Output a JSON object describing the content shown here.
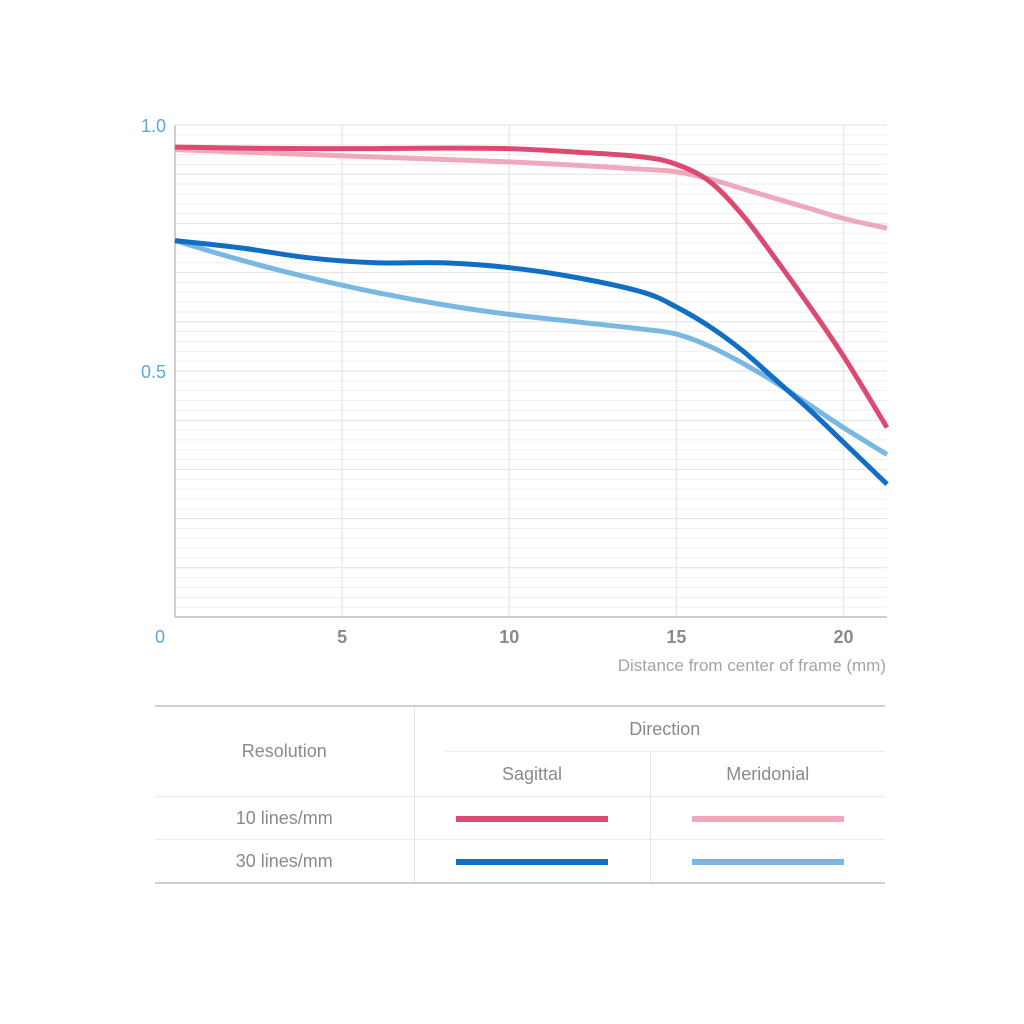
{
  "chart_data": {
    "type": "line",
    "xlabel": "Distance from center of frame (mm)",
    "ylabel": "",
    "xlim": [
      0,
      21.3
    ],
    "ylim": [
      0,
      1.0
    ],
    "x_ticks": [
      "0",
      "5",
      "10",
      "15",
      "20"
    ],
    "y_ticks": [
      "0.5",
      "1.0"
    ],
    "grid": true,
    "series": [
      {
        "resolution": "10 lines/mm",
        "direction": "Sagittal",
        "color": "#dc4a72",
        "x": [
          0,
          2,
          4,
          6,
          8,
          10,
          12,
          14,
          15,
          16,
          17,
          18,
          19,
          20,
          21.3
        ],
        "y": [
          0.955,
          0.953,
          0.952,
          0.952,
          0.953,
          0.952,
          0.945,
          0.935,
          0.92,
          0.885,
          0.815,
          0.725,
          0.63,
          0.53,
          0.385
        ]
      },
      {
        "resolution": "10 lines/mm",
        "direction": "Meridonial",
        "color": "#eeaabc",
        "x": [
          0,
          2,
          4,
          6,
          8,
          10,
          12,
          14,
          15,
          16,
          17,
          18,
          19,
          20,
          21.3
        ],
        "y": [
          0.95,
          0.945,
          0.94,
          0.935,
          0.93,
          0.925,
          0.918,
          0.91,
          0.905,
          0.89,
          0.87,
          0.85,
          0.83,
          0.81,
          0.79
        ]
      },
      {
        "resolution": "30 lines/mm",
        "direction": "Sagittal",
        "color": "#106ec4",
        "x": [
          0,
          2,
          4,
          6,
          8,
          10,
          12,
          14,
          15,
          16,
          17,
          18,
          19,
          20,
          21.3
        ],
        "y": [
          0.765,
          0.75,
          0.73,
          0.72,
          0.72,
          0.71,
          0.69,
          0.66,
          0.63,
          0.59,
          0.54,
          0.48,
          0.42,
          0.355,
          0.27
        ]
      },
      {
        "resolution": "30 lines/mm",
        "direction": "Meridonial",
        "color": "#7ab8e4",
        "x": [
          0,
          2,
          4,
          6,
          8,
          10,
          12,
          14,
          15,
          16,
          17,
          18,
          19,
          20,
          21.3
        ],
        "y": [
          0.765,
          0.725,
          0.69,
          0.66,
          0.635,
          0.615,
          0.6,
          0.585,
          0.575,
          0.55,
          0.515,
          0.475,
          0.43,
          0.385,
          0.33
        ]
      }
    ]
  },
  "legend": {
    "resolution_header": "Resolution",
    "direction_header": "Direction",
    "sagittal_header": "Sagittal",
    "meridional_header": "Meridonial",
    "rows": [
      {
        "label": "10 lines/mm",
        "sagittal_color": "#dc4a72",
        "meridional_color": "#eeaabc"
      },
      {
        "label": "30 lines/mm",
        "sagittal_color": "#106ec4",
        "meridional_color": "#7ab8e4"
      }
    ]
  }
}
